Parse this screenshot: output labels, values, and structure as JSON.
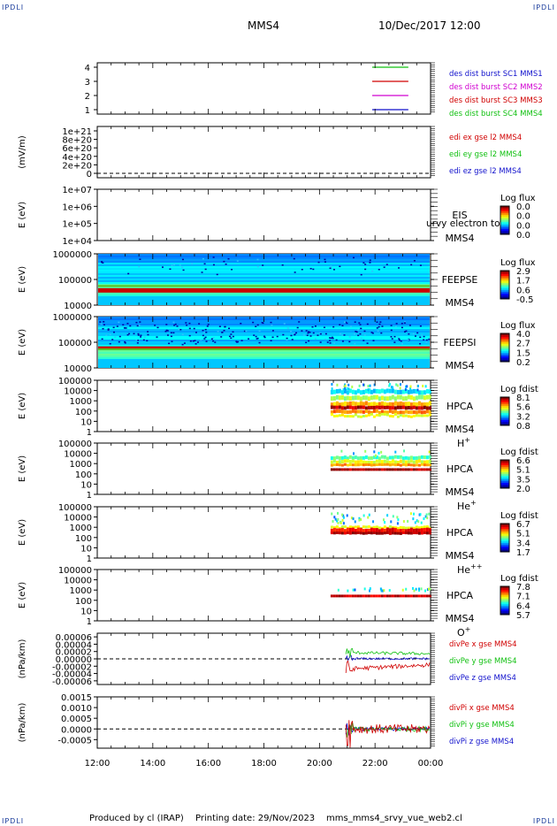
{
  "corner_label": "IPDLI",
  "header": {
    "spacecraft": "MMS4",
    "datetime": "10/Dec/2017 12:00"
  },
  "footer": {
    "produced_by": "Produced by cl (IRAP)",
    "printing_date": "Printing date: 29/Nov/2023",
    "filename": "mms_mms4_srvy_vue_web2.cl"
  },
  "x_axis": {
    "ticks": [
      "12:00",
      "14:00",
      "16:00",
      "18:00",
      "20:00",
      "22:00",
      "00:00"
    ]
  },
  "chart_data": [
    {
      "type": "line",
      "id": "p1",
      "y_ticks": [
        "4",
        "3",
        "2",
        "1"
      ],
      "legend": [
        {
          "label": "des dist burst SC1 MMS1",
          "color": "#1010cc"
        },
        {
          "label": "des dist burst SC2 MMS2",
          "color": "#d000d0"
        },
        {
          "label": "des dist burst SC3 MMS3",
          "color": "#d00000"
        },
        {
          "label": "des dist burst SC4 MMS4",
          "color": "#10c010"
        }
      ],
      "series_lines": [
        {
          "y": 4,
          "color": "#10c010",
          "x": [
            21.9,
            23.2
          ]
        },
        {
          "y": 3,
          "color": "#d00000",
          "x": [
            21.9,
            23.2
          ]
        },
        {
          "y": 2,
          "color": "#d000d0",
          "x": [
            21.9,
            23.2
          ]
        },
        {
          "y": 1,
          "color": "#1010cc",
          "x": [
            21.9,
            23.2
          ]
        }
      ]
    },
    {
      "type": "line",
      "id": "p2",
      "ylabel": "(mV/m)",
      "y_ticks": [
        "1e+21",
        "8e+20",
        "6e+20",
        "4e+20",
        "2e+20",
        "0"
      ],
      "ylim": [
        0,
        1e+21
      ],
      "legend": [
        {
          "label": "edi ex gse l2 MMS4",
          "color": "#d00000"
        },
        {
          "label": "edi ey gse l2 MMS4",
          "color": "#10c010"
        },
        {
          "label": "edi ez gse l2 MMS4",
          "color": "#1010cc"
        }
      ]
    },
    {
      "type": "heatmap",
      "id": "p3",
      "ylabel": "E (eV)",
      "y_ticks": [
        "1e+07",
        "1e+06",
        "1e+05",
        "1e+04"
      ],
      "right_labels": [
        "EIS",
        "MMS4"
      ],
      "overlay_text": "urvy electron to",
      "colorbar": {
        "title": "Log flux",
        "ticks": [
          "0.0",
          "0.0",
          "0.0",
          "0.0"
        ]
      }
    },
    {
      "type": "heatmap",
      "id": "p4",
      "ylabel": "E (eV)",
      "y_ticks": [
        "1000000",
        "100000",
        "10000"
      ],
      "right_labels": [
        "FEEPSE",
        "MMS4"
      ],
      "colorbar": {
        "title": "Log flux",
        "ticks": [
          "2.9",
          "1.7",
          "0.6",
          "-0.5"
        ]
      }
    },
    {
      "type": "heatmap",
      "id": "p5",
      "ylabel": "E (eV)",
      "y_ticks": [
        "1000000",
        "100000",
        "10000"
      ],
      "right_labels": [
        "FEEPSI",
        "MMS4"
      ],
      "colorbar": {
        "title": "Log flux",
        "ticks": [
          "4.0",
          "2.7",
          "1.5",
          "0.2"
        ]
      }
    },
    {
      "type": "heatmap",
      "id": "p6",
      "ylabel": "E (eV)",
      "y_ticks": [
        "100000",
        "10000",
        "1000",
        "100",
        "10",
        "1"
      ],
      "right_labels": [
        "HPCA",
        "MMS4"
      ],
      "species": {
        "base": "H",
        "sup": "+"
      },
      "colorbar": {
        "title": "Log fdist",
        "ticks": [
          "8.1",
          "5.6",
          "3.2",
          "0.8"
        ]
      }
    },
    {
      "type": "heatmap",
      "id": "p7",
      "ylabel": "E (eV)",
      "y_ticks": [
        "100000",
        "10000",
        "1000",
        "100",
        "10",
        "1"
      ],
      "right_labels": [
        "HPCA",
        "MMS4"
      ],
      "species": {
        "base": "He",
        "sup": "+"
      },
      "colorbar": {
        "title": "Log fdist",
        "ticks": [
          "6.6",
          "5.1",
          "3.5",
          "2.0"
        ]
      }
    },
    {
      "type": "heatmap",
      "id": "p8",
      "ylabel": "E (eV)",
      "y_ticks": [
        "100000",
        "10000",
        "1000",
        "100",
        "10",
        "1"
      ],
      "right_labels": [
        "HPCA",
        "MMS4"
      ],
      "species": {
        "base": "He",
        "sup": "++"
      },
      "colorbar": {
        "title": "Log fdist",
        "ticks": [
          "6.7",
          "5.1",
          "3.4",
          "1.7"
        ]
      }
    },
    {
      "type": "heatmap",
      "id": "p9",
      "ylabel": "E (eV)",
      "y_ticks": [
        "100000",
        "10000",
        "1000",
        "100",
        "10",
        "1"
      ],
      "right_labels": [
        "HPCA",
        "MMS4"
      ],
      "species": {
        "base": "O",
        "sup": "+"
      },
      "colorbar": {
        "title": "Log fdist",
        "ticks": [
          "7.8",
          "7.1",
          "6.4",
          "5.7"
        ]
      }
    },
    {
      "type": "line",
      "id": "p10",
      "ylabel": "(nPa/km)",
      "y_ticks": [
        "0.00006",
        "0.00004",
        "0.00002",
        "0.00000",
        "-0.00002",
        "-0.00004",
        "-0.00006"
      ],
      "ylim": [
        -7e-05,
        7e-05
      ],
      "legend": [
        {
          "label": "divPe x gse MMS4",
          "color": "#d00000"
        },
        {
          "label": "divPe y gse MMS4",
          "color": "#10c010"
        },
        {
          "label": "divPe z gse MMS4",
          "color": "#1010cc"
        }
      ]
    },
    {
      "type": "line",
      "id": "p11",
      "ylabel": "(nPa/km)",
      "y_ticks": [
        "0.0015",
        "0.0010",
        "0.0005",
        "0.0000",
        "-0.0005"
      ],
      "ylim": [
        -0.0009,
        0.0015
      ],
      "legend": [
        {
          "label": "divPi x gse MMS4",
          "color": "#d00000"
        },
        {
          "label": "divPi y gse MMS4",
          "color": "#10c010"
        },
        {
          "label": "divPi z gse MMS4",
          "color": "#1010cc"
        }
      ]
    }
  ]
}
